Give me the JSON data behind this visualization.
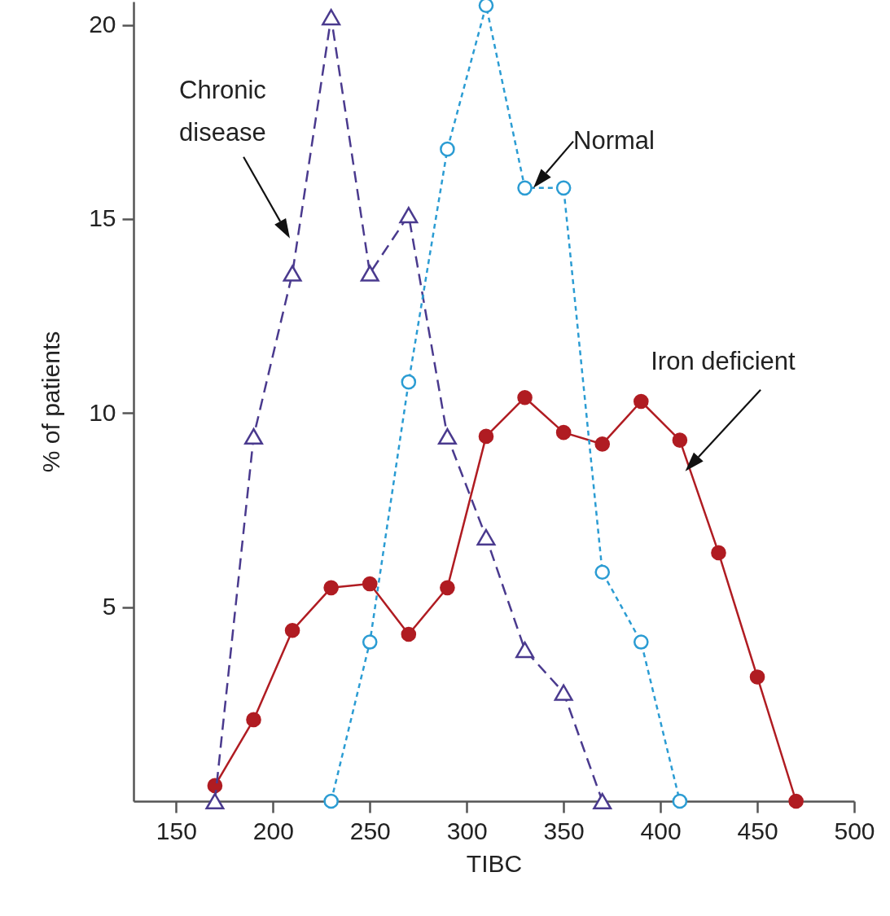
{
  "chart_data": {
    "type": "line",
    "xlabel": "TIBC",
    "ylabel": "% of patients",
    "xlim": [
      128,
      500
    ],
    "ylim": [
      0,
      20.6
    ],
    "xticks": [
      150,
      200,
      250,
      300,
      350,
      400,
      450,
      500
    ],
    "yticks": [
      5,
      10,
      15,
      20
    ],
    "grid": false,
    "series": [
      {
        "name": "Iron deficient",
        "color": "#b01c22",
        "marker": "circle",
        "line_style": "solid",
        "x": [
          170,
          190,
          210,
          230,
          250,
          270,
          290,
          310,
          330,
          350,
          370,
          390,
          410,
          430,
          450,
          470
        ],
        "values": [
          0.4,
          2.1,
          4.4,
          5.5,
          5.6,
          4.3,
          5.5,
          9.4,
          10.4,
          9.5,
          9.2,
          10.3,
          9.3,
          6.4,
          3.2,
          0
        ]
      },
      {
        "name": "Chronic disease",
        "color": "#4a3a8e",
        "marker": "triangle",
        "line_style": "dashed",
        "x": [
          170,
          190,
          210,
          230,
          250,
          270,
          290,
          310,
          330,
          350,
          370
        ],
        "values": [
          0,
          9.4,
          13.6,
          20.2,
          13.6,
          15.1,
          9.4,
          6.8,
          3.9,
          2.8,
          0
        ]
      },
      {
        "name": "Normal",
        "color": "#2b9cd3",
        "marker": "circle",
        "line_style": "dotted",
        "x": [
          230,
          250,
          270,
          290,
          310,
          330,
          350,
          370,
          390,
          410
        ],
        "values": [
          0,
          4.1,
          10.8,
          16.8,
          20.5,
          15.8,
          15.8,
          5.9,
          4.1,
          0
        ]
      }
    ]
  }
}
